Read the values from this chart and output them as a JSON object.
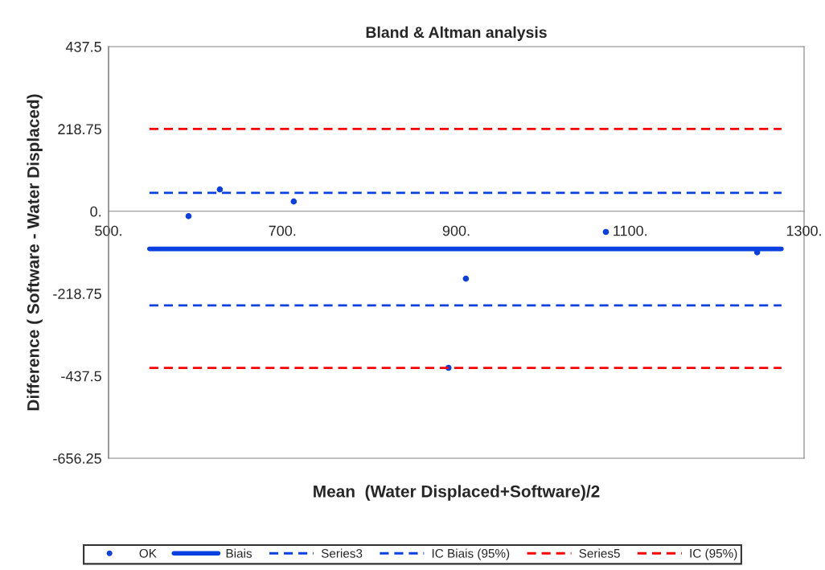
{
  "chart_data": {
    "type": "scatter",
    "title": "Bland & Altman analysis",
    "xlabel": "Mean  (Water Displaced+Software)/2",
    "ylabel": "Difference ( Software - Water Displaced)",
    "xlim": [
      500,
      1300
    ],
    "xticks": [
      {
        "value": 500,
        "label": "500."
      },
      {
        "value": 700,
        "label": "700."
      },
      {
        "value": 900,
        "label": "900."
      },
      {
        "value": 1100,
        "label": "1100."
      },
      {
        "value": 1300,
        "label": "1300."
      }
    ],
    "ylim": [
      -656.25,
      437.5
    ],
    "yticks": [
      437.5,
      218.75,
      {
        "value": 0,
        "label": "0."
      },
      -218.75,
      -437.5,
      -656.25
    ],
    "grid": false,
    "legend": "bottom",
    "series": [
      {
        "name": "OK",
        "color": "#0a3fe0",
        "marker": "circle",
        "x": [
          592,
          628,
          713,
          911,
          891,
          1072,
          1246
        ],
        "values": [
          -13,
          58,
          26,
          -179,
          -416,
          -55,
          -109
        ]
      },
      {
        "name": "Biais",
        "type": "line",
        "color": "#0a3fe0",
        "line_style": "solid",
        "x": [
          547,
          1274
        ],
        "values": [
          -100,
          -100
        ]
      },
      {
        "name": "Series3",
        "type": "line",
        "color": "#0a3fe0",
        "line_style": "dashed",
        "x": [
          547,
          1274
        ],
        "values": [
          49,
          49
        ]
      },
      {
        "name": "IC Biais (95%)",
        "type": "line",
        "color": "#0a3fe0",
        "line_style": "dashed",
        "x": [
          547,
          1274
        ],
        "values": [
          -250,
          -250
        ]
      },
      {
        "name": "Series5",
        "type": "line",
        "color": "#ff0000",
        "line_style": "dashed",
        "x": [
          547,
          1274
        ],
        "values": [
          219,
          219
        ]
      },
      {
        "name": "IC (95%)",
        "type": "line",
        "color": "#ff0000",
        "line_style": "dashed",
        "x": [
          547,
          1274
        ],
        "values": [
          -416,
          -416
        ]
      }
    ]
  }
}
